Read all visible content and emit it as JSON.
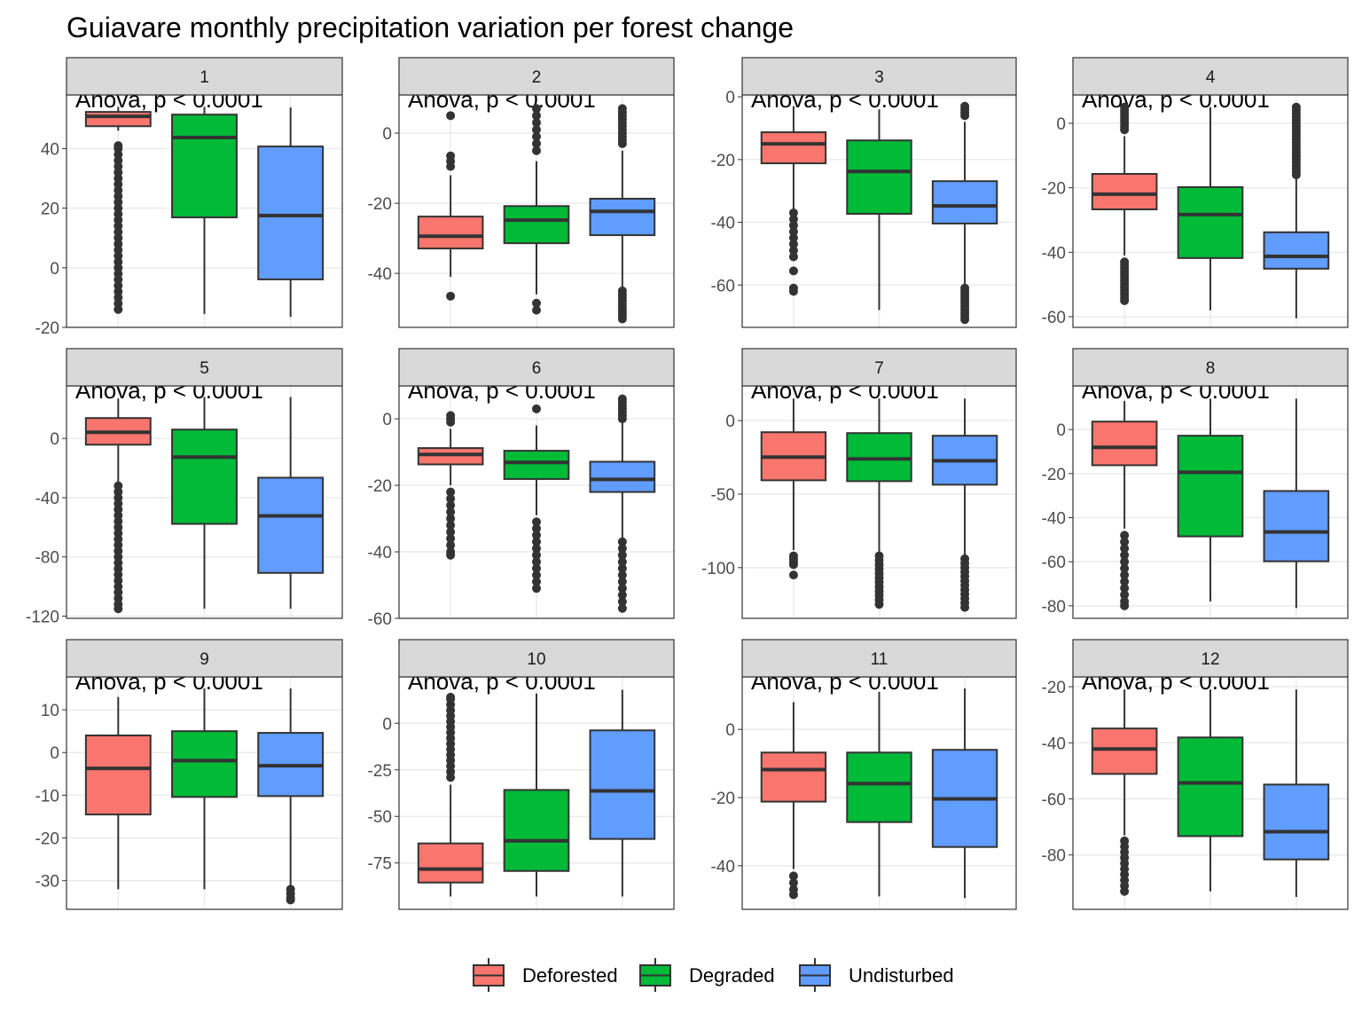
{
  "title": "Guiavare monthly precipitation variation per forest change",
  "legend": [
    {
      "name": "Deforested",
      "color": "#f8766d"
    },
    {
      "name": "Degraded",
      "color": "#00ba38"
    },
    {
      "name": "Undisturbed",
      "color": "#619cff"
    }
  ],
  "chart_data": [
    {
      "type": "box",
      "strip": "1",
      "annotation": "Anova, p < 0.0001",
      "ylim": [
        -20,
        58
      ],
      "yticks": [
        -20,
        0,
        20,
        40
      ],
      "boxes": [
        {
          "min": 46,
          "q1": 47.5,
          "median": 50.8,
          "q3": 52.3,
          "max": 54,
          "outliers": [
            41,
            40,
            38,
            36,
            34,
            32,
            30,
            28,
            26,
            24,
            22,
            20,
            18,
            16,
            14,
            12,
            10,
            8,
            6,
            4,
            2,
            0,
            -2,
            -4,
            -6,
            -8,
            -10,
            -12,
            -14
          ]
        },
        {
          "min": -15.5,
          "q1": 16.9,
          "median": 43.7,
          "q3": 51.4,
          "max": 54,
          "outliers": []
        },
        {
          "min": -16.5,
          "q1": -3.9,
          "median": 17.5,
          "q3": 40.7,
          "max": 53.8,
          "outliers": []
        }
      ]
    },
    {
      "type": "box",
      "strip": "2",
      "annotation": "Anova, p < 0.0001",
      "ylim": [
        -55.4,
        10.9
      ],
      "yticks": [
        -40,
        -20,
        0
      ],
      "boxes": [
        {
          "min": -41,
          "q1": -32.9,
          "median": -29.4,
          "q3": -23.8,
          "max": -12,
          "outliers": [
            5,
            -6.5,
            -8,
            -9.5,
            -46.5
          ]
        },
        {
          "min": -46,
          "q1": -31.4,
          "median": -24.8,
          "q3": -20.8,
          "max": -8,
          "outliers": [
            7,
            5,
            3,
            1,
            -1,
            -3,
            -5,
            -48.5,
            -50.5
          ]
        },
        {
          "min": -44,
          "q1": -29.1,
          "median": -22.3,
          "q3": -18.7,
          "max": -5,
          "outliers": [
            7,
            6,
            5,
            4,
            3,
            2,
            1,
            0,
            -1,
            -2,
            -3,
            -45,
            -46,
            -47,
            -48,
            -49,
            -50,
            -51,
            -52,
            -53
          ]
        }
      ]
    },
    {
      "type": "box",
      "strip": "3",
      "annotation": "Anova, p < 0.0001",
      "ylim": [
        -73.5,
        0.6
      ],
      "yticks": [
        -60,
        -40,
        -20,
        0
      ],
      "boxes": [
        {
          "min": -36,
          "q1": -21.2,
          "median": -15,
          "q3": -11.3,
          "max": -3,
          "outliers": [
            -37,
            -39,
            -41,
            -43,
            -45,
            -47,
            -49,
            -51,
            -55.5,
            -61,
            -62
          ]
        },
        {
          "min": -68,
          "q1": -37.3,
          "median": -23.8,
          "q3": -13.9,
          "max": -4,
          "outliers": []
        },
        {
          "min": -60,
          "q1": -40.4,
          "median": -34.8,
          "q3": -26.9,
          "max": -8,
          "outliers": [
            -3,
            -4,
            -5,
            -6,
            -61,
            -62,
            -63,
            -64,
            -65,
            -66,
            -67,
            -68,
            -69,
            -70,
            -71
          ]
        }
      ]
    },
    {
      "type": "box",
      "strip": "4",
      "annotation": "Anova, p < 0.0001",
      "ylim": [
        -63.3,
        8.8
      ],
      "yticks": [
        -60,
        -40,
        -20,
        0
      ],
      "boxes": [
        {
          "min": -41,
          "q1": -26.7,
          "median": -22,
          "q3": -15.7,
          "max": -4,
          "outliers": [
            5,
            4,
            3,
            2,
            1,
            0,
            -1,
            -2,
            -43,
            -44,
            -45,
            -46,
            -47,
            -48,
            -49,
            -50,
            -51,
            -52,
            -53,
            -54,
            -55
          ]
        },
        {
          "min": -58,
          "q1": -41.8,
          "median": -28.3,
          "q3": -19.8,
          "max": 5,
          "outliers": []
        },
        {
          "min": -60.5,
          "q1": -45.1,
          "median": -41.3,
          "q3": -33.8,
          "max": -17,
          "outliers": [
            5,
            4,
            3,
            2,
            1,
            0,
            -1,
            -2,
            -3,
            -4,
            -5,
            -6,
            -7,
            -8,
            -9,
            -10,
            -11,
            -12,
            -13,
            -14,
            -15,
            -16
          ]
        }
      ]
    },
    {
      "type": "box",
      "strip": "5",
      "annotation": "Anova, p < 0.0001",
      "ylim": [
        -121.5,
        35.5
      ],
      "yticks": [
        -120,
        -80,
        -40,
        0
      ],
      "boxes": [
        {
          "min": -30,
          "q1": -4.2,
          "median": 4.2,
          "q3": 13.8,
          "max": 27,
          "outliers": [
            -32,
            -36,
            -40,
            -44,
            -48,
            -52,
            -56,
            -60,
            -64,
            -68,
            -72,
            -76,
            -80,
            -84,
            -88,
            -92,
            -96,
            -100,
            -104,
            -108,
            -112,
            -115
          ]
        },
        {
          "min": -115,
          "q1": -57.7,
          "median": -12.6,
          "q3": 6,
          "max": 28,
          "outliers": []
        },
        {
          "min": -115,
          "q1": -90.8,
          "median": -52.3,
          "q3": -26.5,
          "max": 28,
          "outliers": []
        }
      ]
    },
    {
      "type": "box",
      "strip": "6",
      "annotation": "Anova, p < 0.0001",
      "ylim": [
        -60,
        9.9
      ],
      "yticks": [
        -60,
        -40,
        -20,
        0
      ],
      "boxes": [
        {
          "min": -20,
          "q1": -13.7,
          "median": -10.7,
          "q3": -8.8,
          "max": -3,
          "outliers": [
            1,
            0,
            -1,
            -22,
            -24,
            -26,
            -28,
            -30,
            -32,
            -34,
            -36,
            -38,
            -40,
            -41
          ]
        },
        {
          "min": -29,
          "q1": -18.1,
          "median": -13.1,
          "q3": -9.6,
          "max": -2,
          "outliers": [
            3,
            -31,
            -33,
            -35,
            -37,
            -39,
            -41,
            -43,
            -45,
            -47,
            -49,
            -51
          ]
        },
        {
          "min": -36,
          "q1": -22,
          "median": -18.2,
          "q3": -12.9,
          "max": -1,
          "outliers": [
            0,
            1,
            2,
            3,
            4,
            5,
            6,
            -37,
            -39,
            -41,
            -43,
            -45,
            -47,
            -49,
            -51,
            -53,
            -55,
            -57
          ]
        }
      ]
    },
    {
      "type": "box",
      "strip": "7",
      "annotation": "Anova, p < 0.0001",
      "ylim": [
        -134.5,
        23.6
      ],
      "yticks": [
        -100,
        -50,
        0
      ],
      "boxes": [
        {
          "min": -88,
          "q1": -40.6,
          "median": -24.8,
          "q3": -7.9,
          "max": 15,
          "outliers": [
            -92,
            -94,
            -96,
            -98,
            -105
          ]
        },
        {
          "min": -90,
          "q1": -41.2,
          "median": -26,
          "q3": -8.5,
          "max": 15,
          "outliers": [
            -92,
            -95,
            -98,
            -101,
            -104,
            -107,
            -110,
            -113,
            -116,
            -119,
            -122,
            -125
          ]
        },
        {
          "min": -92,
          "q1": -43.6,
          "median": -27.3,
          "q3": -10.3,
          "max": 15,
          "outliers": [
            -94,
            -97,
            -100,
            -103,
            -106,
            -109,
            -112,
            -115,
            -118,
            -121,
            -124,
            -127
          ]
        }
      ]
    },
    {
      "type": "box",
      "strip": "8",
      "annotation": "Anova, p < 0.0001",
      "ylim": [
        -85.7,
        19.8
      ],
      "yticks": [
        -80,
        -60,
        -40,
        -20,
        0
      ],
      "boxes": [
        {
          "min": -45,
          "q1": -16.2,
          "median": -8.1,
          "q3": 3.6,
          "max": 13,
          "outliers": [
            -48,
            -51,
            -54,
            -57,
            -60,
            -63,
            -66,
            -69,
            -72,
            -75,
            -78,
            -80
          ]
        },
        {
          "min": -78,
          "q1": -48.5,
          "median": -19.4,
          "q3": -2.8,
          "max": 14,
          "outliers": []
        },
        {
          "min": -81,
          "q1": -59.8,
          "median": -46.5,
          "q3": -27.9,
          "max": 14,
          "outliers": []
        }
      ]
    },
    {
      "type": "box",
      "strip": "9",
      "annotation": "Anova, p < 0.0001",
      "ylim": [
        -36.7,
        17.7
      ],
      "yticks": [
        -30,
        -20,
        -10,
        0,
        10
      ],
      "boxes": [
        {
          "min": -32,
          "q1": -14.5,
          "median": -3.7,
          "q3": 4,
          "max": 13,
          "outliers": []
        },
        {
          "min": -32,
          "q1": -10.4,
          "median": -1.9,
          "q3": 5,
          "max": 15,
          "outliers": []
        },
        {
          "min": -31,
          "q1": -10.2,
          "median": -3.1,
          "q3": 4.6,
          "max": 15,
          "outliers": [
            -32,
            -33,
            -34,
            -34.5
          ]
        }
      ]
    },
    {
      "type": "box",
      "strip": "10",
      "annotation": "Anova, p < 0.0001",
      "ylim": [
        -99.9,
        24.9
      ],
      "yticks": [
        -75,
        -50,
        -25,
        0
      ],
      "boxes": [
        {
          "min": -93,
          "q1": -85.5,
          "median": -78.3,
          "q3": -64.5,
          "max": -33,
          "outliers": [
            -29,
            -26,
            -23,
            -20,
            -17,
            -14,
            -11,
            -8,
            -5,
            -2,
            1,
            4,
            7,
            10,
            13,
            14
          ]
        },
        {
          "min": -93,
          "q1": -79.3,
          "median": -63.1,
          "q3": -35.8,
          "max": 16,
          "outliers": []
        },
        {
          "min": -93,
          "q1": -62.1,
          "median": -36.3,
          "q3": -3.8,
          "max": 18,
          "outliers": []
        }
      ]
    },
    {
      "type": "box",
      "strip": "11",
      "annotation": "Anova, p < 0.0001",
      "ylim": [
        -52.8,
        15.4
      ],
      "yticks": [
        -40,
        -20,
        0
      ],
      "boxes": [
        {
          "min": -41,
          "q1": -21.2,
          "median": -11.8,
          "q3": -6.8,
          "max": 8,
          "outliers": [
            -43,
            -45,
            -47,
            -48.5
          ]
        },
        {
          "min": -49,
          "q1": -27.2,
          "median": -15.9,
          "q3": -6.8,
          "max": 11,
          "outliers": []
        },
        {
          "min": -49.5,
          "q1": -34.5,
          "median": -20.4,
          "q3": -6,
          "max": 12,
          "outliers": []
        }
      ]
    },
    {
      "type": "box",
      "strip": "12",
      "annotation": "Anova, p < 0.0001",
      "ylim": [
        -99.4,
        -16.5
      ],
      "yticks": [
        -80,
        -60,
        -40,
        -20
      ],
      "boxes": [
        {
          "min": -73,
          "q1": -51.1,
          "median": -42.2,
          "q3": -34.9,
          "max": -21,
          "outliers": [
            -75,
            -77,
            -79,
            -81,
            -83,
            -85,
            -87,
            -89,
            -91,
            -93
          ]
        },
        {
          "min": -93,
          "q1": -73.3,
          "median": -54.3,
          "q3": -38.1,
          "max": -21,
          "outliers": []
        },
        {
          "min": -95,
          "q1": -81.6,
          "median": -71.7,
          "q3": -54.9,
          "max": -21,
          "outliers": []
        }
      ]
    }
  ]
}
